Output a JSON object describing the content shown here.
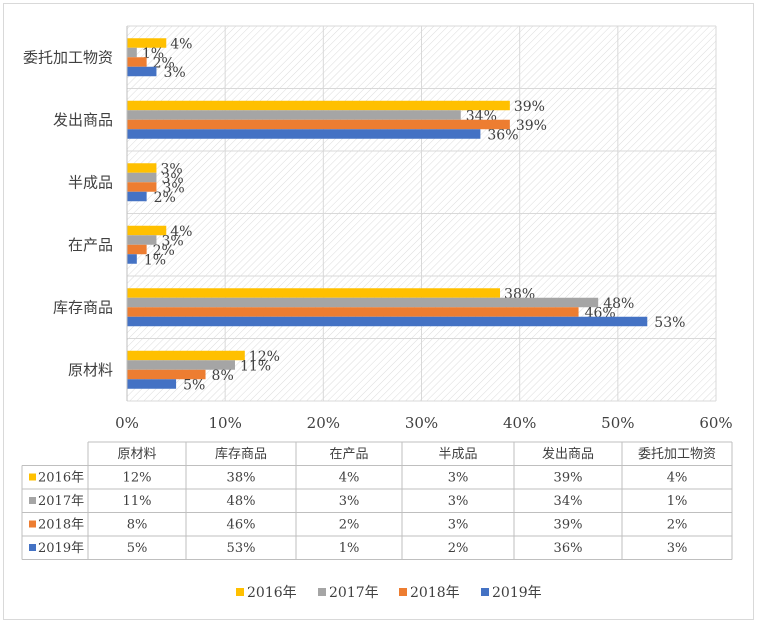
{
  "chart_data": {
    "type": "bar",
    "orientation": "horizontal",
    "categories": [
      "原材料",
      "库存商品",
      "在产品",
      "半成品",
      "发出商品",
      "委托加工物资"
    ],
    "series": [
      {
        "name": "2016年",
        "color": "#FFC000",
        "values": [
          12,
          38,
          4,
          3,
          39,
          4
        ]
      },
      {
        "name": "2017年",
        "color": "#A5A5A5",
        "values": [
          11,
          48,
          3,
          3,
          34,
          1
        ]
      },
      {
        "name": "2018年",
        "color": "#ED7D31",
        "values": [
          8,
          46,
          2,
          3,
          39,
          2
        ]
      },
      {
        "name": "2019年",
        "color": "#4472C4",
        "values": [
          5,
          53,
          1,
          2,
          36,
          3
        ]
      }
    ],
    "value_unit": "%",
    "xlim": [
      0,
      60
    ],
    "x_ticks": [
      "0%",
      "10%",
      "20%",
      "30%",
      "40%",
      "50%",
      "60%"
    ],
    "grid": true,
    "plot_background": "diagonal-hatch",
    "data_table": true,
    "legend_position": "bottom"
  }
}
